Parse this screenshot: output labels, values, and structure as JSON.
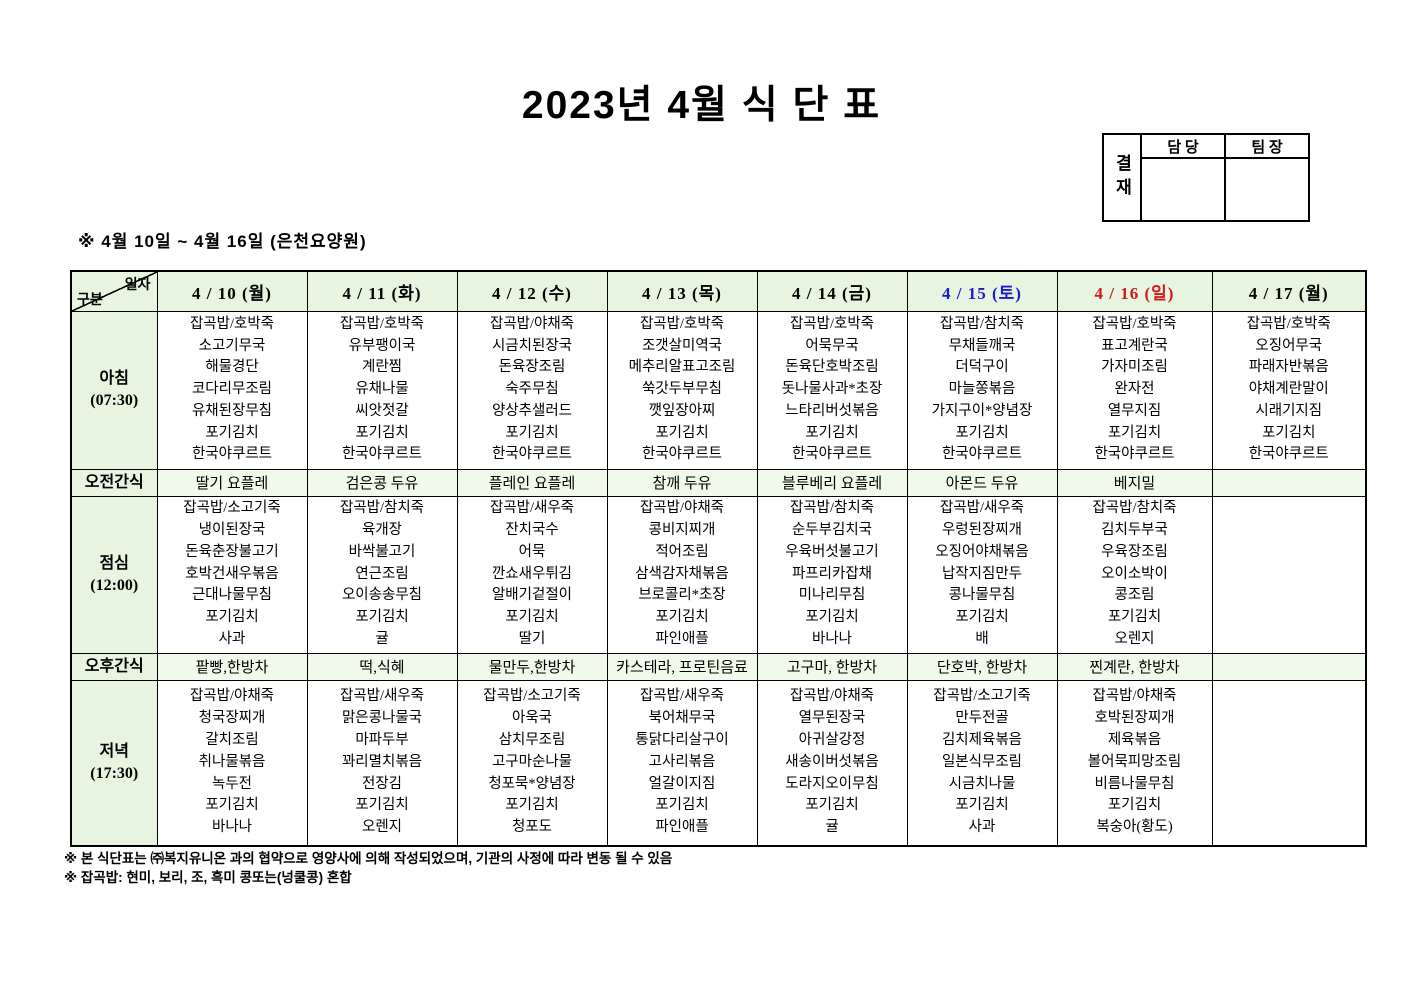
{
  "title": "2023년  4월  식  단  표",
  "subtitle": "※  4월  10일  ~  4월  16일  (은천요양원)",
  "approval": {
    "label": "결재",
    "columns": [
      "담 당",
      "팀 장"
    ]
  },
  "colors": {
    "header_bg": "#e7f4df",
    "snack_bg": "#f0f9ea",
    "weekday_text": "#000000",
    "saturday_text": "#1a1ad0",
    "sunday_text": "#d01a1a"
  },
  "table": {
    "corner_top": "일자",
    "corner_bottom": "구분",
    "dates": [
      {
        "label": "4 / 10 (월)",
        "color": "#000000"
      },
      {
        "label": "4 / 11 (화)",
        "color": "#000000"
      },
      {
        "label": "4 / 12 (수)",
        "color": "#000000"
      },
      {
        "label": "4 / 13 (목)",
        "color": "#000000"
      },
      {
        "label": "4 / 14 (금)",
        "color": "#000000"
      },
      {
        "label": "4 / 15 (토)",
        "color": "#1a1ad0"
      },
      {
        "label": "4 / 16 (일)",
        "color": "#d01a1a"
      },
      {
        "label": "4 / 17 (월)",
        "color": "#000000"
      }
    ],
    "rows": [
      {
        "type": "meal",
        "label_lines": [
          "아침",
          "(07:30)"
        ],
        "cells": [
          [
            "잡곡밥/호박죽",
            "소고기무국",
            "해물경단",
            "코다리무조림",
            "유채된장무침",
            "포기김치",
            "한국야쿠르트"
          ],
          [
            "잡곡밥/호박죽",
            "유부팽이국",
            "계란찜",
            "유채나물",
            "씨앗젓갈",
            "포기김치",
            "한국야쿠르트"
          ],
          [
            "잡곡밥/야채죽",
            "시금치된장국",
            "돈육장조림",
            "숙주무침",
            "양상추샐러드",
            "포기김치",
            "한국야쿠르트"
          ],
          [
            "잡곡밥/호박죽",
            "조갯살미역국",
            "메추리알표고조림",
            "쑥갓두부무침",
            "깻잎장아찌",
            "포기김치",
            "한국야쿠르트"
          ],
          [
            "잡곡밥/호박죽",
            "어묵무국",
            "돈육단호박조림",
            "돗나물사과*초장",
            "느타리버섯볶음",
            "포기김치",
            "한국야쿠르트"
          ],
          [
            "잡곡밥/참치죽",
            "무채들깨국",
            "더덕구이",
            "마늘쫑볶음",
            "가지구이*양념장",
            "포기김치",
            "한국야쿠르트"
          ],
          [
            "잡곡밥/호박죽",
            "표고계란국",
            "가자미조림",
            "완자전",
            "열무지짐",
            "포기김치",
            "한국야쿠르트"
          ],
          [
            "잡곡밥/호박죽",
            "오징어무국",
            "파래자반볶음",
            "야채계란말이",
            "시래기지짐",
            "포기김치",
            "한국야쿠르트"
          ]
        ]
      },
      {
        "type": "snack",
        "label_lines": [
          "오전간식"
        ],
        "cells": [
          "딸기 요플레",
          "검은콩 두유",
          "플레인 요플레",
          "참깨 두유",
          "블루베리 요플레",
          "아몬드 두유",
          "베지밀",
          ""
        ]
      },
      {
        "type": "meal",
        "label_lines": [
          "점심",
          "(12:00)"
        ],
        "cells": [
          [
            "잡곡밥/소고기죽",
            "냉이된장국",
            "돈육춘장불고기",
            "호박건새우볶음",
            "근대나물무침",
            "포기김치",
            "사과"
          ],
          [
            "잡곡밥/참치죽",
            "육개장",
            "바싹불고기",
            "연근조림",
            "오이송송무침",
            "포기김치",
            "귤"
          ],
          [
            "잡곡밥/새우죽",
            "잔치국수",
            "어묵",
            "깐쇼새우튀김",
            "알배기겉절이",
            "포기김치",
            "딸기"
          ],
          [
            "잡곡밥/야채죽",
            "콩비지찌개",
            "적어조림",
            "삼색감자채볶음",
            "브로콜리*초장",
            "포기김치",
            "파인애플"
          ],
          [
            "잡곡밥/참치죽",
            "순두부김치국",
            "우육버섯불고기",
            "파프리카잡채",
            "미나리무침",
            "포기김치",
            "바나나"
          ],
          [
            "잡곡밥/새우죽",
            "우렁된장찌개",
            "오징어야채볶음",
            "납작지짐만두",
            "콩나물무침",
            "포기김치",
            "배"
          ],
          [
            "잡곡밥/참치죽",
            "김치두부국",
            "우육장조림",
            "오이소박이",
            "콩조림",
            "포기김치",
            "오렌지"
          ],
          []
        ]
      },
      {
        "type": "snack",
        "label_lines": [
          "오후간식"
        ],
        "cells": [
          "팥빵,한방차",
          "떡,식혜",
          "물만두,한방차",
          "카스테라, 프로틴음료",
          "고구마, 한방차",
          "단호박, 한방차",
          "찐계란, 한방차",
          ""
        ]
      },
      {
        "type": "meal",
        "label_lines": [
          "저녁",
          "(17:30)"
        ],
        "cells": [
          [
            "잡곡밥/야채죽",
            "청국장찌개",
            "갈치조림",
            "취나물볶음",
            "녹두전",
            "포기김치",
            "바나나"
          ],
          [
            "잡곡밥/새우죽",
            "맑은콩나물국",
            "마파두부",
            "꽈리멸치볶음",
            "전장김",
            "포기김치",
            "오렌지"
          ],
          [
            "잡곡밥/소고기죽",
            "아욱국",
            "삼치무조림",
            "고구마순나물",
            "청포묵*양념장",
            "포기김치",
            "청포도"
          ],
          [
            "잡곡밥/새우죽",
            "북어채무국",
            "통닭다리살구이",
            "고사리볶음",
            "얼갈이지짐",
            "포기김치",
            "파인애플"
          ],
          [
            "잡곡밥/야채죽",
            "열무된장국",
            "아귀살강정",
            "새송이버섯볶음",
            "도라지오이무침",
            "포기김치",
            "귤"
          ],
          [
            "잡곡밥/소고기죽",
            "만두전골",
            "김치제육볶음",
            "일본식무조림",
            "시금치나물",
            "포기김치",
            "사과"
          ],
          [
            "잡곡밥/야채죽",
            "호박된장찌개",
            "제육볶음",
            "볼어묵피망조림",
            "비름나물무침",
            "포기김치",
            "복숭아(황도)"
          ],
          []
        ]
      }
    ]
  },
  "footnotes": [
    "※ 본 식단표는 ㈜복지유니온 과의 협약으로 영양사에 의해 작성되었으며, 기관의 사정에 따라 변동 될 수 있음",
    "※ 잡곡밥: 현미, 보리, 조, 흑미 콩또는(넝쿨콩) 혼합"
  ]
}
